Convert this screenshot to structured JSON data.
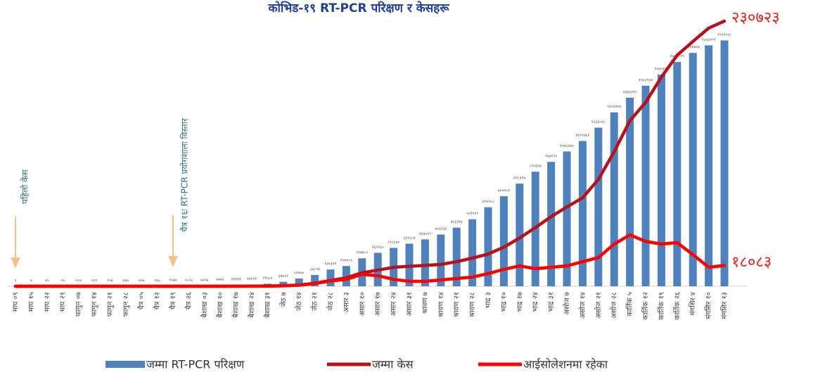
{
  "chart_data": {
    "type": "bar",
    "title": "कोभिड-१९  RT-PCR परिक्षण र केसहरू",
    "annotations": [
      "पहिलो केस",
      "चैत्र १६ः RT-PCR प्रयोगशाला विस्तार"
    ],
    "categories": [
      "माघ ०९",
      "माघ १५",
      "माघ २२",
      "माघ २९",
      "फागुन ०७",
      "फागुन १४",
      "फागुन २१",
      "फागुन २८",
      "चैत्र ०५",
      "चैत्र १२",
      "चैत्र १९",
      "चैत्र २६",
      "बैशाख ०३",
      "बैशाख १०",
      "बैशाख १७",
      "बैशाख २४",
      "बैशाख ३१",
      "जेठ ७",
      "जेठ १४",
      "जेठ २१",
      "जेठ २८",
      "असार ३",
      "असार १०",
      "असार १७",
      "असार २४",
      "असार ३१",
      "श्रावण ७",
      "श्रावण १४",
      "श्रावण २१",
      "श्रावण २८",
      "भाद्र ३",
      "भाद्र १०",
      "भाद्र १७",
      "भाद्र २४",
      "भाद्र ३१",
      "असोज ७",
      "असोज १४",
      "असोज २१",
      "असोज २८",
      "कार्तिक ५",
      "कार्तिक १२",
      "कार्तिक १९",
      "कार्तिक २६",
      "मंगसिर ४",
      "मंगसिर १०",
      "मंगसिर १३"
    ],
    "ylim": [
      0,
      2100000
    ],
    "y2lim": [
      0,
      235000
    ],
    "series": [
      {
        "name": "जम्मा  RT-PCR परिक्षण",
        "type": "bar",
        "color": "#4f81bd",
        "axis": "y",
        "values": [
          1,
          4,
          15,
          20,
          110,
          119,
          154,
          440,
          457,
          960,
          1574,
          2856,
          4097,
          7072,
          11414,
          14021,
          19580,
          34731,
          59700,
          87894,
          130311,
          157586,
          217480,
          260135,
          298640,
          331284,
          364512,
          402236,
          456173,
          521009,
          614288,
          700451,
          798317,
          890654,
          967120,
          1048375,
          1129460,
          1233018,
          1352407,
          1466215,
          1558904,
          1645332,
          1743819,
          1814406,
          1873091,
          1911598
        ],
        "value_labels": [
          "१",
          "४",
          "१५",
          "२०",
          "११०",
          "११९",
          "१५४",
          "४४०",
          "४५७",
          "९६०",
          "१५७४",
          "२८५६",
          "४०९७",
          "७०७२",
          "११४१४",
          "१४०२१",
          "१९५८०",
          "३४७३१",
          "५९७००",
          "८७८९४",
          "१३०३११",
          "१५७५८६",
          "२१७४८०",
          "२६०१३५",
          "२९८६४०",
          "३३१२८४",
          "३६४५१२",
          "४०२२३६",
          "४५६१७३",
          "५२१००९",
          "६१४२८८",
          "७००४५१",
          "७९८३१७",
          "८९०६५४",
          "९६७१२०",
          "१०४८३७५",
          "११२९४६०",
          "१२३३०१८",
          "१३५२४०७",
          "१४६६२१५",
          "१५५८९०४",
          "१६४५३३२",
          "१७४३८१९",
          "१८१४४०६",
          "१८७३०९१",
          "१९११५९८"
        ]
      },
      {
        "name": "जम्मा केस",
        "type": "line",
        "color": "#b5121b",
        "axis": "y2",
        "values": [
          1,
          1,
          1,
          1,
          1,
          1,
          1,
          1,
          1,
          2,
          5,
          9,
          16,
          31,
          59,
          134,
          249,
          457,
          1042,
          2634,
          5062,
          7300,
          11755,
          14046,
          16500,
          17344,
          18094,
          19000,
          21390,
          24500,
          28000,
          34000,
          42000,
          51000,
          60600,
          69000,
          77000,
          93000,
          117000,
          144000,
          160000,
          182000,
          201000,
          213000,
          224600,
          230723
        ],
        "value_labels": [
          null,
          null,
          null,
          null,
          null,
          null,
          null,
          null,
          null,
          null,
          null,
          null,
          null,
          null,
          null,
          null,
          null,
          null,
          null,
          null,
          null,
          null,
          null,
          null,
          null,
          null,
          null,
          null,
          null,
          null,
          null,
          null,
          null,
          null,
          null,
          null,
          null,
          null,
          null,
          null,
          null,
          null,
          null,
          null,
          null,
          "२३०७२३"
        ]
      },
      {
        "name": "आईसोलेशनमा रहेका",
        "type": "line",
        "color": "#ff0000",
        "axis": "y2",
        "values": [
          1,
          1,
          1,
          1,
          1,
          1,
          1,
          1,
          1,
          2,
          4,
          8,
          14,
          28,
          42,
          100,
          180,
          400,
          940,
          2400,
          4600,
          6000,
          10400,
          9200,
          6000,
          4300,
          4300,
          5500,
          6700,
          8000,
          11000,
          14700,
          17700,
          15300,
          16500,
          17700,
          21400,
          25000,
          36700,
          44700,
          39000,
          36700,
          38000,
          27500,
          16500,
          18083
        ],
        "value_labels": [
          null,
          null,
          null,
          null,
          null,
          null,
          null,
          null,
          null,
          null,
          null,
          null,
          null,
          null,
          null,
          null,
          null,
          null,
          null,
          null,
          null,
          null,
          null,
          null,
          null,
          null,
          null,
          null,
          null,
          null,
          null,
          null,
          null,
          null,
          null,
          null,
          null,
          null,
          null,
          null,
          null,
          null,
          null,
          null,
          null,
          "१८०८३"
        ]
      }
    ]
  }
}
